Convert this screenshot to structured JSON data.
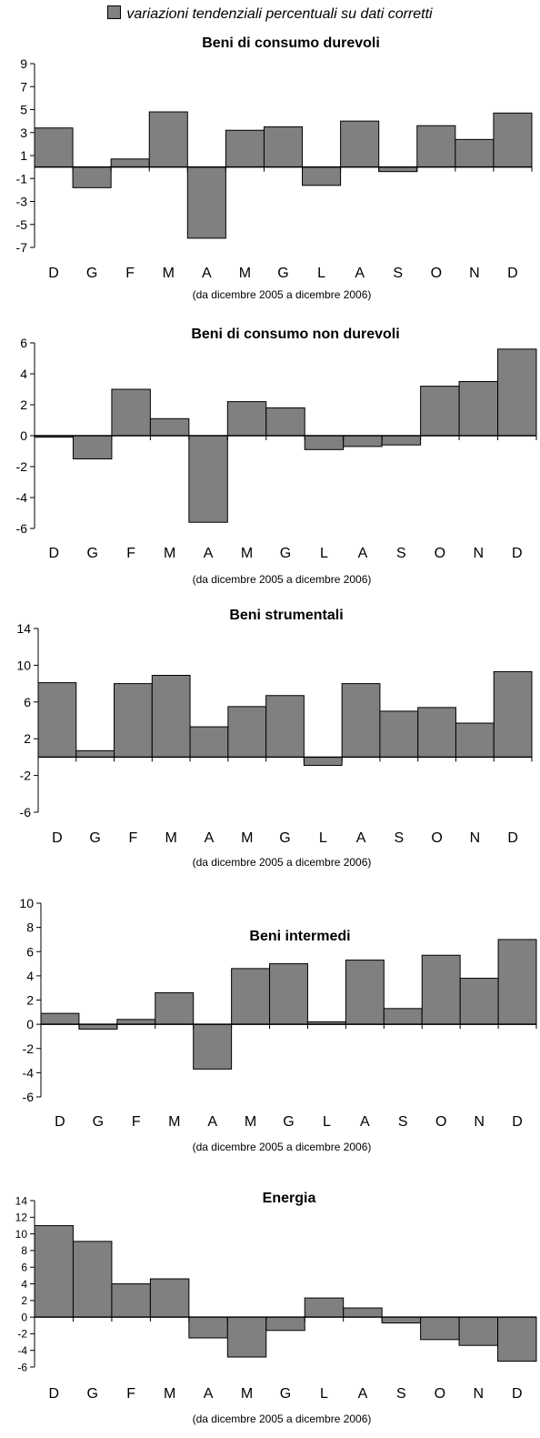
{
  "legend": {
    "label": "variazioni tendenziali percentuali su dati corretti",
    "color": "#808080",
    "swatch_icon": "square-swatch-icon"
  },
  "chart_data": [
    {
      "type": "bar",
      "title": "Beni di consumo durevoli",
      "xlabel": "(da dicembre 2005 a dicembre 2006)",
      "categories": [
        "D",
        "G",
        "F",
        "M",
        "A",
        "M",
        "G",
        "L",
        "A",
        "S",
        "O",
        "N",
        "D"
      ],
      "values": [
        3.4,
        -1.8,
        0.7,
        4.8,
        -6.2,
        3.2,
        3.5,
        -1.6,
        4.0,
        -0.4,
        3.6,
        2.4,
        4.7
      ],
      "ylim": [
        -7,
        9
      ],
      "yticks": [
        9,
        7,
        5,
        3,
        1,
        -1,
        -3,
        -5,
        -7
      ],
      "bar_color": "#808080"
    },
    {
      "type": "bar",
      "title": "Beni di consumo non durevoli",
      "xlabel": "(da dicembre 2005 a dicembre 2006)",
      "categories": [
        "D",
        "G",
        "F",
        "M",
        "A",
        "M",
        "G",
        "L",
        "A",
        "S",
        "O",
        "N",
        "D"
      ],
      "values": [
        -0.1,
        -1.5,
        3.0,
        1.1,
        -5.6,
        2.2,
        1.8,
        -0.9,
        -0.7,
        -0.6,
        3.2,
        3.5,
        5.6
      ],
      "ylim": [
        -6,
        6
      ],
      "yticks": [
        6,
        4,
        2,
        0,
        -2,
        -4,
        -6
      ],
      "bar_color": "#808080"
    },
    {
      "type": "bar",
      "title": "Beni strumentali",
      "xlabel": "(da dicembre 2005 a dicembre 2006)",
      "categories": [
        "D",
        "G",
        "F",
        "M",
        "A",
        "M",
        "G",
        "L",
        "A",
        "S",
        "O",
        "N",
        "D"
      ],
      "values": [
        8.1,
        0.7,
        8.0,
        8.9,
        3.3,
        5.5,
        6.7,
        -0.9,
        8.0,
        5.0,
        5.4,
        3.7,
        9.3
      ],
      "ylim": [
        -6,
        14
      ],
      "yticks": [
        14,
        10,
        6,
        2,
        -2,
        -6
      ],
      "bar_color": "#808080"
    },
    {
      "type": "bar",
      "title": "Beni intermedi",
      "xlabel": "(da dicembre 2005 a dicembre 2006)",
      "categories": [
        "D",
        "G",
        "F",
        "M",
        "A",
        "M",
        "G",
        "L",
        "A",
        "S",
        "O",
        "N",
        "D"
      ],
      "values": [
        0.9,
        -0.4,
        0.4,
        2.6,
        -3.7,
        4.6,
        5.0,
        0.2,
        5.3,
        1.3,
        5.7,
        3.8,
        7.0
      ],
      "ylim": [
        -6,
        10
      ],
      "yticks": [
        10,
        8,
        6,
        4,
        2,
        0,
        -2,
        -4,
        -6
      ],
      "bar_color": "#808080"
    },
    {
      "type": "bar",
      "title": "Energia",
      "xlabel": "(da dicembre 2005 a dicembre 2006)",
      "categories": [
        "D",
        "G",
        "F",
        "M",
        "A",
        "M",
        "G",
        "L",
        "A",
        "S",
        "O",
        "N",
        "D"
      ],
      "values": [
        11.0,
        9.1,
        4.0,
        4.6,
        -2.5,
        -4.8,
        -1.6,
        2.3,
        1.1,
        -0.7,
        -2.7,
        -3.4,
        -5.3
      ],
      "ylim": [
        -6,
        14
      ],
      "yticks": [
        14,
        12,
        10,
        8,
        6,
        4,
        2,
        0,
        -2,
        -4,
        -6
      ],
      "bar_color": "#808080"
    }
  ]
}
